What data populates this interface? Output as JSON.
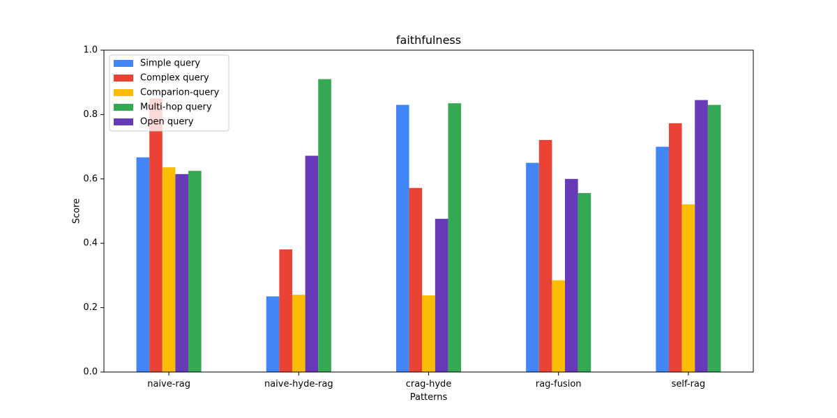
{
  "chart_data": {
    "type": "bar",
    "title": "faithfulness",
    "xlabel": "Patterns",
    "ylabel": "Score",
    "ylim": [
      0,
      1.0
    ],
    "yticks": [
      "0.0",
      "0.2",
      "0.4",
      "0.6",
      "0.8",
      "1.0"
    ],
    "categories": [
      "naive-rag",
      "naive-hyde-rag",
      "crag-hyde",
      "rag-fusion",
      "self-rag"
    ],
    "series": [
      {
        "name": "Simple query",
        "color": "#4285f4",
        "values": [
          0.667,
          0.235,
          0.83,
          0.65,
          0.7
        ]
      },
      {
        "name": "Complex query",
        "color": "#ea4335",
        "values": [
          0.85,
          0.381,
          0.572,
          0.721,
          0.773
        ]
      },
      {
        "name": "Comparion-query",
        "color": "#fbbc04",
        "values": [
          0.636,
          0.24,
          0.238,
          0.285,
          0.521
        ]
      },
      {
        "name": "Open query",
        "color": "#673ab7",
        "values": [
          0.615,
          0.672,
          0.476,
          0.6,
          0.845
        ]
      },
      {
        "name": "Multi-hop query",
        "color": "#34a853",
        "values": [
          0.625,
          0.91,
          0.835,
          0.556,
          0.83
        ]
      }
    ],
    "legend_order": [
      0,
      1,
      2,
      4,
      3
    ],
    "legend_position": "top-left",
    "grid": false
  }
}
